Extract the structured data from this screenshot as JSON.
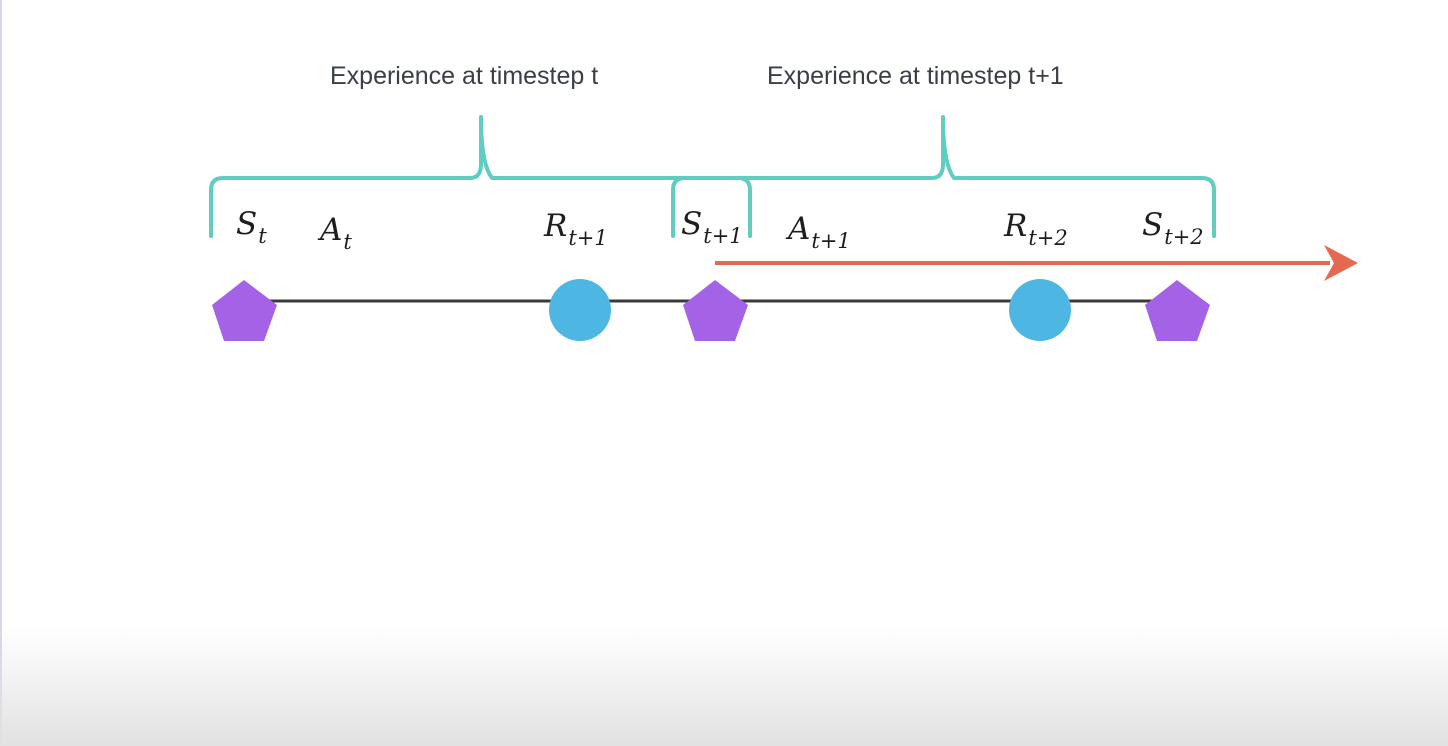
{
  "labels": {
    "caption_t": "Experience at timestep t",
    "caption_t1": "Experience at timestep t+1"
  },
  "nodes": [
    {
      "kind": "state",
      "base": "S",
      "sub": "t"
    },
    {
      "kind": "action",
      "base": "A",
      "sub": "t"
    },
    {
      "kind": "reward",
      "base": "R",
      "sub": "t+1"
    },
    {
      "kind": "state",
      "base": "S",
      "sub": "t+1"
    },
    {
      "kind": "action",
      "base": "A",
      "sub": "t+1"
    },
    {
      "kind": "reward",
      "base": "R",
      "sub": "t+2"
    },
    {
      "kind": "state",
      "base": "S",
      "sub": "t+2"
    }
  ],
  "colors": {
    "state": "#a463e6",
    "reward": "#4eb6e2",
    "bracket": "#5fcdc0",
    "arrow": "#e5694f",
    "line": "#3a3a3a",
    "caption": "#3a3f47"
  }
}
